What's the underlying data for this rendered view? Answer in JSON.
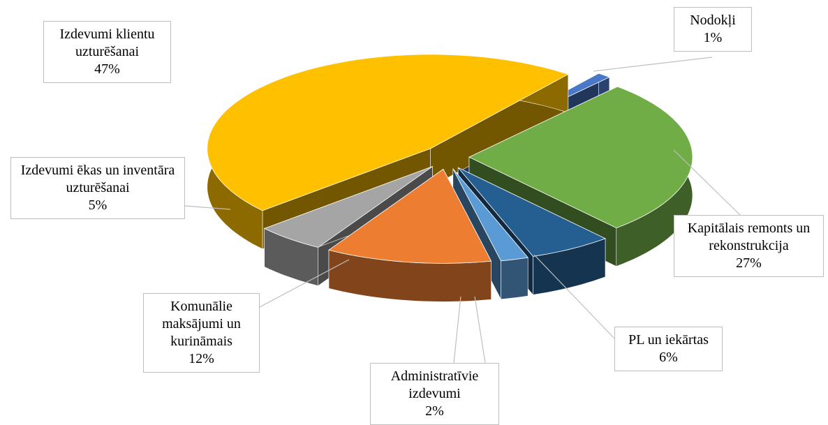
{
  "chart_data": {
    "type": "pie",
    "three_d": true,
    "exploded": true,
    "categories": [
      "Nodokļi",
      "Kapitālais remonts un rekonstrukcija",
      "PL un iekārtas",
      "Administratīvie izdevumi",
      "Komunālie maksājumi un kurināmais",
      "Izdevumi ēkas un inventāra uzturēšanai",
      "Izdevumi klientu uzturēšanai"
    ],
    "values": [
      1,
      27,
      6,
      2,
      12,
      5,
      47
    ],
    "value_labels": [
      "1%",
      "27%",
      "6%",
      "2%",
      "12%",
      "5%",
      "47%"
    ],
    "colors": [
      "#4a78c8",
      "#70ad47",
      "#255e91",
      "#5b9bd5",
      "#ed7d31",
      "#a5a5a5",
      "#ffc000"
    ]
  }
}
